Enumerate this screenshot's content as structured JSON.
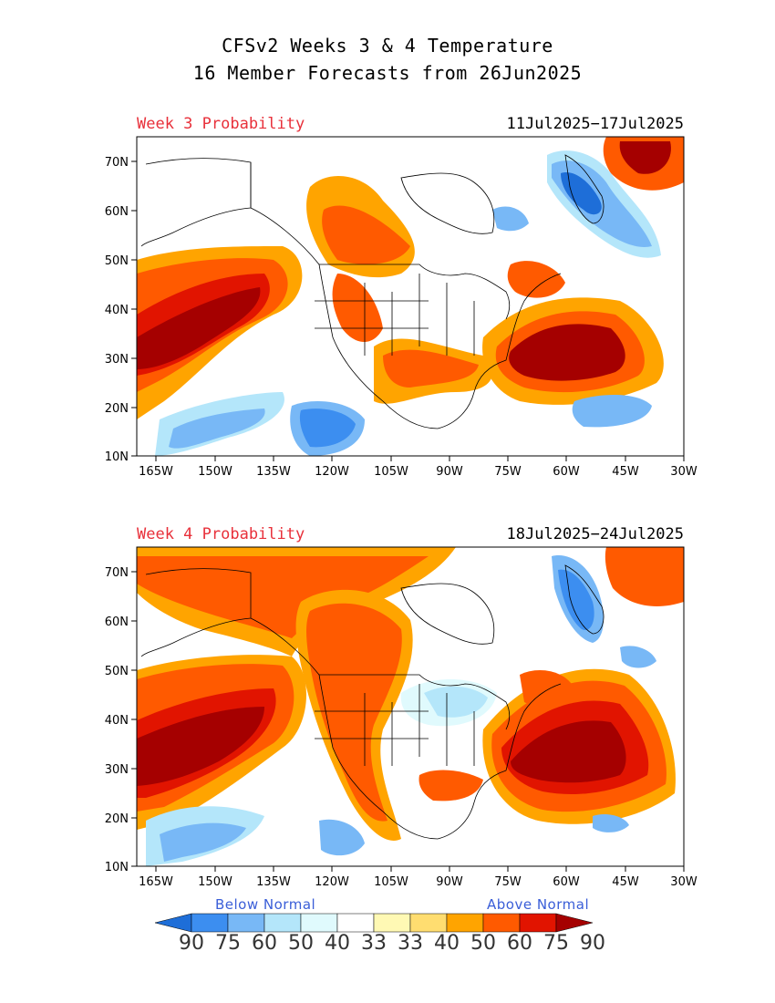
{
  "title_line1": "CFSv2 Weeks 3 & 4 Temperature",
  "title_line2": "16 Member Forecasts from 26Jun2025",
  "panels": [
    {
      "label": "Week 3 Probability",
      "dates": "11Jul2025−17Jul2025"
    },
    {
      "label": "Week 4 Probability",
      "dates": "18Jul2025−24Jul2025"
    }
  ],
  "axes": {
    "lat_ticks": [
      "70N",
      "60N",
      "50N",
      "40N",
      "30N",
      "20N",
      "10N"
    ],
    "lon_ticks": [
      "165W",
      "150W",
      "135W",
      "120W",
      "105W",
      "90W",
      "75W",
      "60W",
      "45W",
      "30W"
    ],
    "lon_range": [
      -170,
      -30
    ],
    "lat_range": [
      10,
      75
    ]
  },
  "colorbar": {
    "below_label": "Below Normal",
    "above_label": "Above Normal",
    "levels": [
      "90",
      "75",
      "60",
      "50",
      "40",
      "33",
      "33",
      "40",
      "50",
      "60",
      "75",
      "90"
    ],
    "colors": [
      "#1e6ed8",
      "#3c8ef0",
      "#78b8f6",
      "#b4e6fa",
      "#e0fafd",
      "#ffffff",
      "#fff9b4",
      "#ffdd70",
      "#ffa400",
      "#ff5a00",
      "#e11400",
      "#a50000"
    ]
  }
}
